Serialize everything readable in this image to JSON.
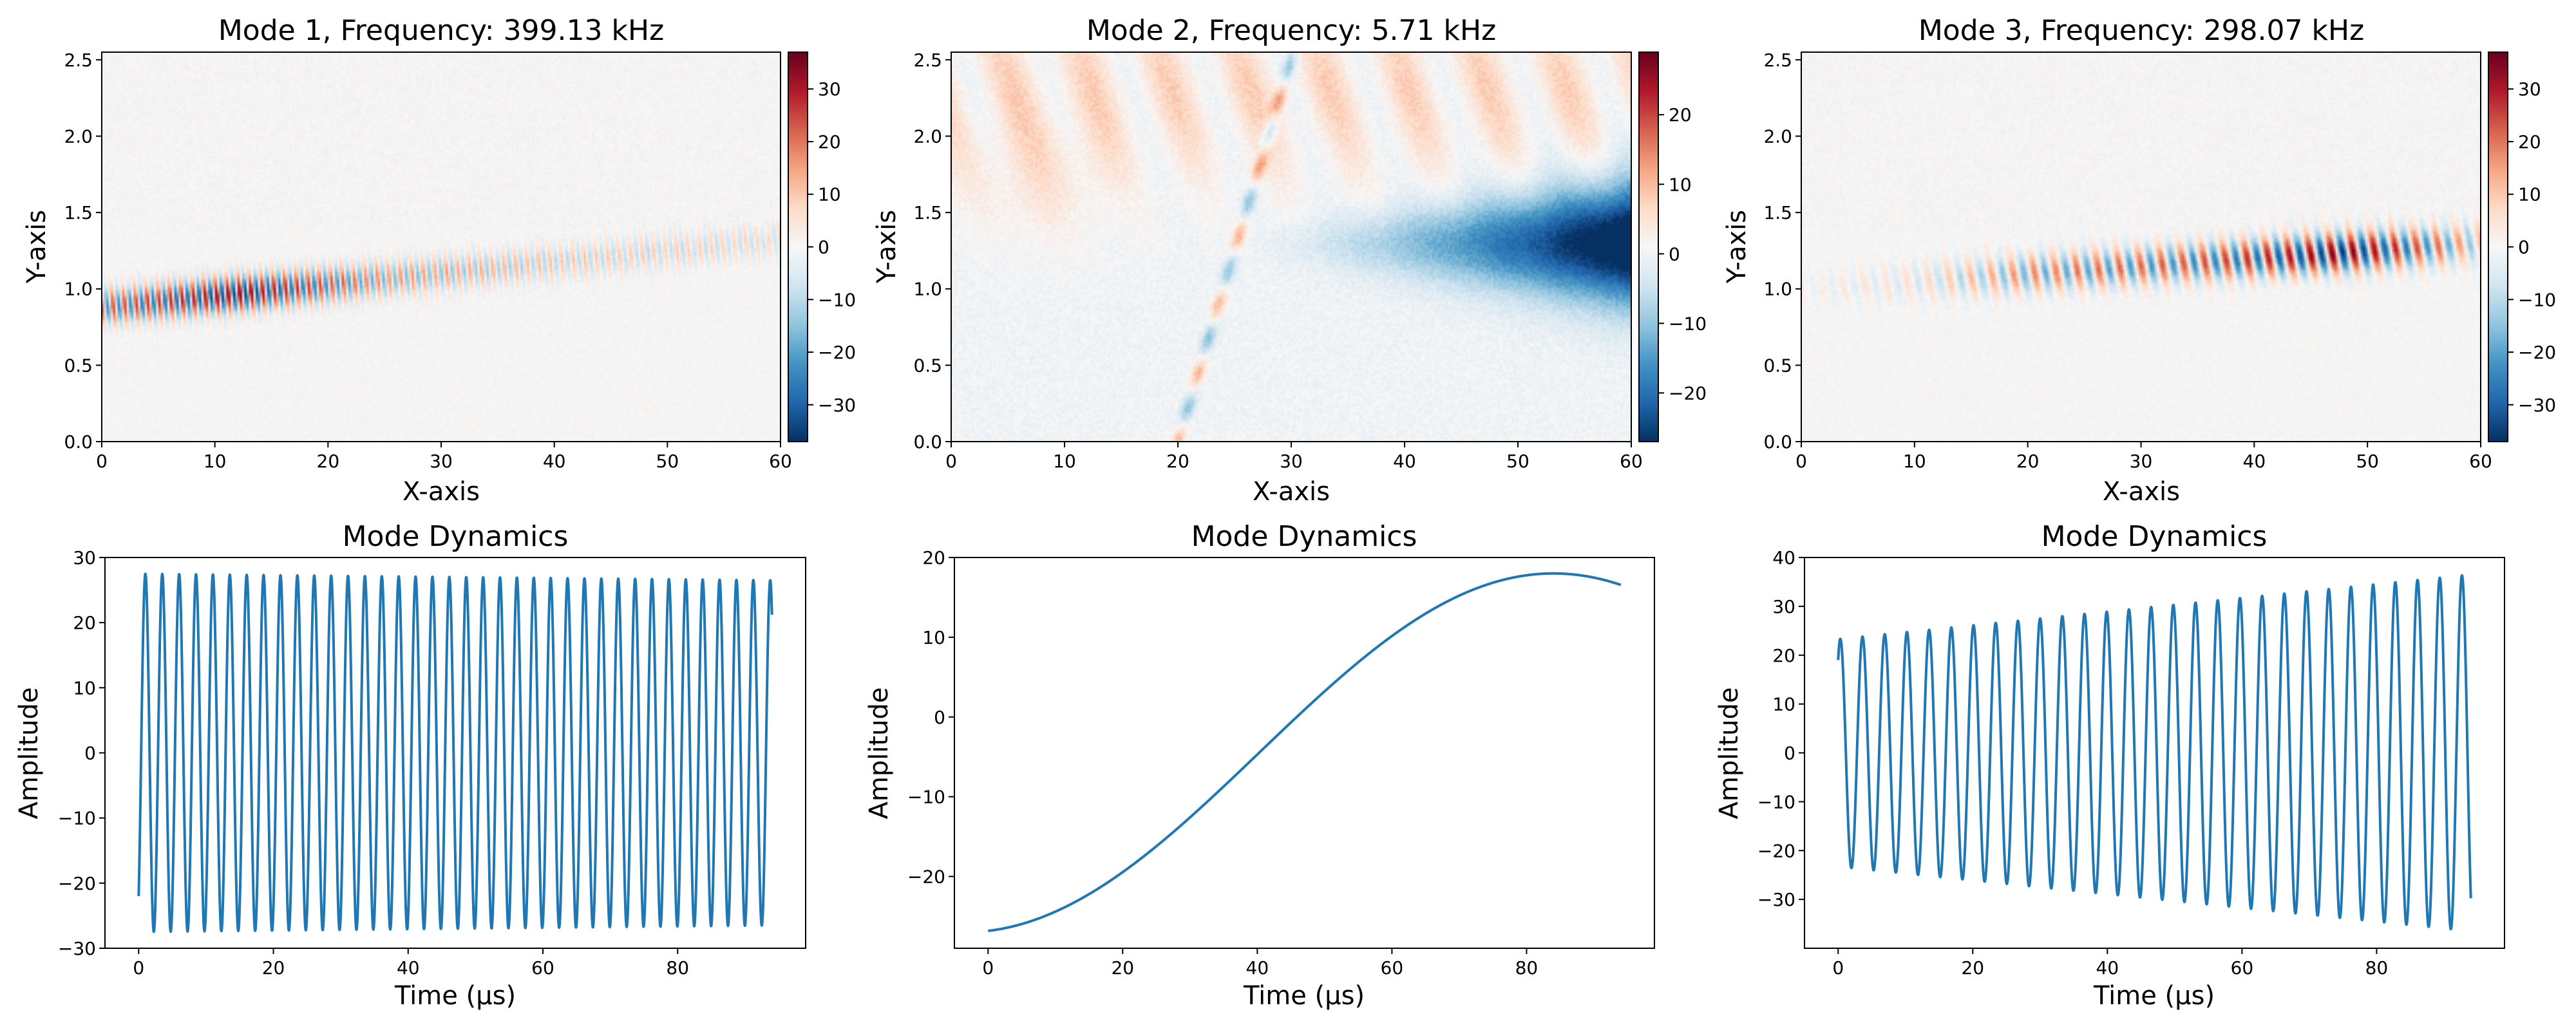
{
  "figure": {
    "layout": "2 rows x 3 columns"
  },
  "chart_data": [
    {
      "type": "heatmap",
      "title": "Mode 1, Frequency: 399.13 kHz",
      "xlabel": "X-axis",
      "ylabel": "Y-axis",
      "xlim": [
        0,
        60
      ],
      "ylim": [
        0,
        2.55
      ],
      "xticks": [
        0,
        10,
        20,
        30,
        40,
        50,
        60
      ],
      "yticks": [
        0.0,
        0.5,
        1.0,
        1.5,
        2.0,
        2.5
      ],
      "colormap": "RdBu_r",
      "clim": [
        -37,
        37
      ],
      "colorbar_ticks": [
        30,
        20,
        10,
        0,
        -10,
        -20,
        -30
      ],
      "pattern": {
        "band_center_start": 0.88,
        "band_center_end": 1.32,
        "band_width": 0.12,
        "stripe_count": 59,
        "amplitude_profile": [
          [
            0,
            24
          ],
          [
            12,
            37
          ],
          [
            25,
            18
          ],
          [
            40,
            11
          ],
          [
            60,
            8
          ]
        ]
      }
    },
    {
      "type": "heatmap",
      "title": "Mode 2, Frequency: 5.71 kHz",
      "xlabel": "X-axis",
      "ylabel": "Y-axis",
      "xlim": [
        0,
        60
      ],
      "ylim": [
        0,
        2.55
      ],
      "xticks": [
        0,
        10,
        20,
        30,
        40,
        50,
        60
      ],
      "yticks": [
        0.0,
        0.5,
        1.0,
        1.5,
        2.0,
        2.5
      ],
      "colormap": "RdBu_r",
      "clim": [
        -27,
        29
      ],
      "colorbar_ticks": [
        20,
        10,
        0,
        -10,
        -20
      ],
      "pattern": {
        "blue_wedge_start_x": 25,
        "blue_wedge_peak_x": 55,
        "blue_wedge_center_y": 1.3,
        "blue_peak": -27,
        "diagonal_stripe_x_range": [
          20,
          30
        ],
        "red_background_peak": 8
      }
    },
    {
      "type": "heatmap",
      "title": "Mode 3, Frequency: 298.07 kHz",
      "xlabel": "X-axis",
      "ylabel": "Y-axis",
      "xlim": [
        0,
        60
      ],
      "ylim": [
        0,
        2.55
      ],
      "xticks": [
        0,
        10,
        20,
        30,
        40,
        50,
        60
      ],
      "yticks": [
        0.0,
        0.5,
        1.0,
        1.5,
        2.0,
        2.5
      ],
      "colormap": "RdBu_r",
      "clim": [
        -37,
        37
      ],
      "colorbar_ticks": [
        30,
        20,
        10,
        0,
        -10,
        -20,
        -30
      ],
      "pattern": {
        "band_center_start": 1.0,
        "band_center_end": 1.3,
        "band_width": 0.13,
        "stripe_count": 32,
        "amplitude_profile": [
          [
            0,
            2
          ],
          [
            10,
            6
          ],
          [
            20,
            18
          ],
          [
            35,
            24
          ],
          [
            48,
            37
          ],
          [
            55,
            24
          ],
          [
            60,
            12
          ]
        ]
      }
    },
    {
      "type": "line",
      "title": "Mode Dynamics",
      "xlabel": "Time (μs)",
      "ylabel": "Amplitude",
      "xlim": [
        -5,
        99
      ],
      "ylim": [
        -30,
        30
      ],
      "xticks": [
        0,
        20,
        40,
        60,
        80
      ],
      "yticks": [
        30,
        20,
        10,
        0,
        -10,
        -20,
        -30
      ],
      "color": "#1f77b4",
      "series": [
        {
          "name": "mode 1",
          "t_start": 0,
          "t_end": 94,
          "cycles": 37.5,
          "amplitude_start": 27.5,
          "amplitude_end": 26.5,
          "start_value": -22
        }
      ]
    },
    {
      "type": "line",
      "title": "Mode Dynamics",
      "xlabel": "Time (μs)",
      "ylabel": "Amplitude",
      "xlim": [
        -5,
        99
      ],
      "ylim": [
        -29,
        20
      ],
      "xticks": [
        0,
        20,
        40,
        60,
        80
      ],
      "yticks": [
        20,
        10,
        0,
        -10,
        -20
      ],
      "color": "#1f77b4",
      "series": [
        {
          "name": "mode 2",
          "t_start": 0,
          "t_end": 94,
          "offset": -4.5,
          "amplitude": 22.5,
          "period": 175,
          "phase_time": 84
        }
      ]
    },
    {
      "type": "line",
      "title": "Mode Dynamics",
      "xlabel": "Time (μs)",
      "ylabel": "Amplitude",
      "xlim": [
        -5,
        99
      ],
      "ylim": [
        -40,
        40
      ],
      "xticks": [
        0,
        20,
        40,
        60,
        80
      ],
      "yticks": [
        40,
        30,
        20,
        10,
        0,
        -10,
        -20,
        -30
      ],
      "color": "#1f77b4",
      "series": [
        {
          "name": "mode 3",
          "t_start": 0,
          "t_end": 94,
          "cycles": 28.5,
          "center_start": 0,
          "center_end": 0,
          "amplitude_start": 23.3,
          "amplitude_end": 36.5,
          "start_value": 19
        }
      ]
    }
  ]
}
